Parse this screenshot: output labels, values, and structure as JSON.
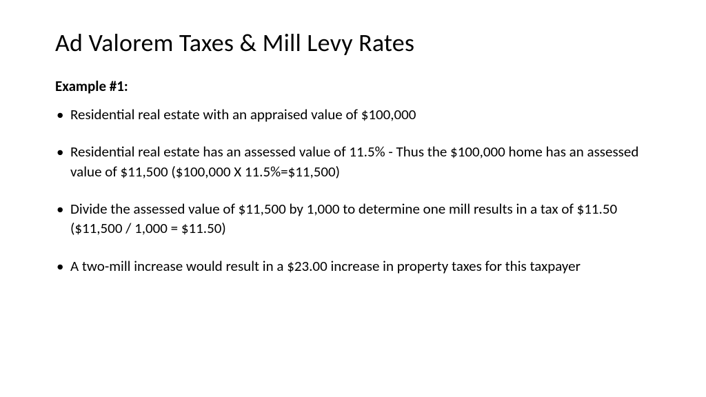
{
  "title": "Ad Valorem Taxes & Mill Levy Rates",
  "subtitle": "Example #1:",
  "bullets": [
    "Residential real estate with an appraised value of $100,000",
    "Residential real estate has an assessed value of 11.5% - Thus the $100,000 home has an assessed value of $11,500  ($100,000 X 11.5%=$11,500)",
    "Divide the assessed value of $11,500 by 1,000 to determine one mill results in a tax of $11.50 ($11,500 / 1,000 = $11.50)",
    "A two-mill increase would result in a $23.00 increase in property taxes for this taxpayer"
  ],
  "colors": {
    "background": "#ffffff",
    "text": "#000000"
  },
  "typography": {
    "title_fontsize": 36,
    "subtitle_fontsize": 21,
    "body_fontsize": 21,
    "font_family": "Calibri"
  }
}
